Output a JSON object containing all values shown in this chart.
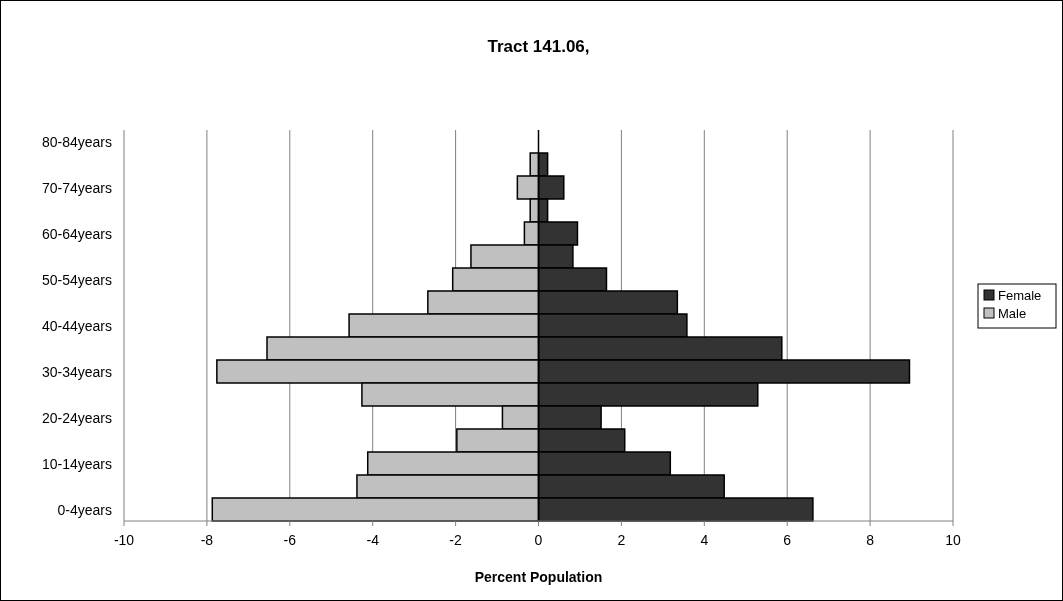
{
  "chart_data": {
    "type": "bar",
    "orientation": "horizontal",
    "title": "Tract 141.06,",
    "xlabel": "Percent Population",
    "categories": [
      "80-84years",
      null,
      "70-74years",
      null,
      "60-64years",
      null,
      "50-54years",
      null,
      "40-44years",
      null,
      "30-34years",
      null,
      "20-24years",
      null,
      "10-14years",
      null,
      "0-4years"
    ],
    "series": [
      {
        "name": "Female",
        "color": "#333333",
        "values": [
          null,
          0.22,
          0.61,
          0.22,
          0.94,
          0.83,
          1.64,
          3.35,
          3.58,
          5.87,
          8.95,
          5.29,
          1.51,
          2.08,
          3.18,
          4.48,
          6.62
        ]
      },
      {
        "name": "Male",
        "color": "#c0c0c0",
        "values": [
          null,
          -0.2,
          -0.51,
          -0.2,
          -0.34,
          -1.63,
          -2.07,
          -2.67,
          -4.57,
          -6.55,
          -7.76,
          -4.26,
          -0.87,
          -1.97,
          -4.12,
          -4.38,
          -7.87
        ]
      }
    ],
    "xlim": [
      -10,
      10
    ],
    "xticks": [
      -10,
      -8,
      -6,
      -4,
      -2,
      0,
      2,
      4,
      6,
      8,
      10
    ],
    "grid": "x",
    "legend": "right",
    "stacked": true
  }
}
